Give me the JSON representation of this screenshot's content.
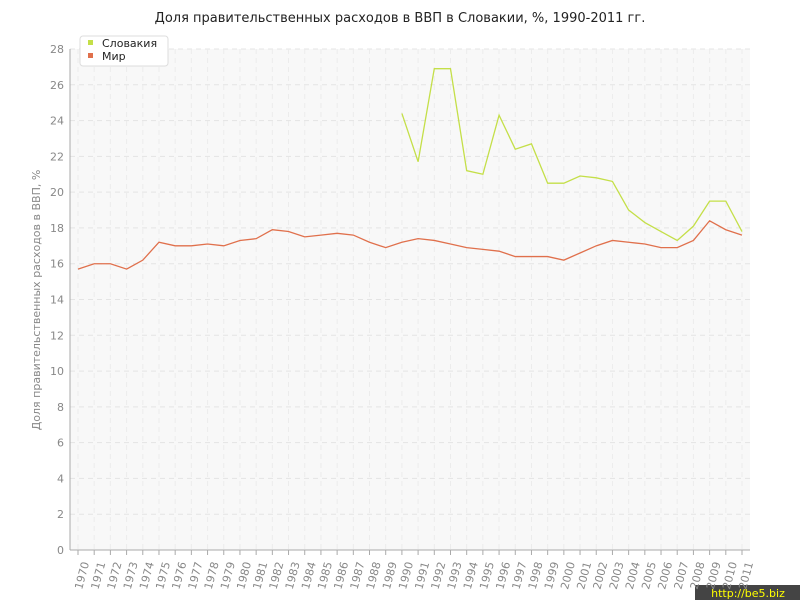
{
  "chart_data": {
    "type": "line",
    "title": "Доля правительственных расходов в ВВП в Словакии, %, 1990-2011 гг.",
    "ylabel": "Доля правительственных расходов в ВВП, %",
    "categories": [
      "1970",
      "1971",
      "1972",
      "1973",
      "1974",
      "1975",
      "1976",
      "1977",
      "1978",
      "1979",
      "1980",
      "1981",
      "1982",
      "1983",
      "1984",
      "1985",
      "1986",
      "1987",
      "1988",
      "1989",
      "1990",
      "1991",
      "1992",
      "1993",
      "1994",
      "1995",
      "1996",
      "1997",
      "1998",
      "1999",
      "2000",
      "2001",
      "2002",
      "2003",
      "2004",
      "2005",
      "2006",
      "2007",
      "2008",
      "2009",
      "2010",
      "2011"
    ],
    "series": [
      {
        "name": "Словакия",
        "color": "#c4df48",
        "values": [
          null,
          null,
          null,
          null,
          null,
          null,
          null,
          null,
          null,
          null,
          null,
          null,
          null,
          null,
          null,
          null,
          null,
          null,
          null,
          null,
          24.4,
          21.7,
          26.9,
          26.9,
          21.2,
          21.0,
          24.3,
          22.4,
          22.7,
          20.5,
          20.5,
          20.9,
          20.8,
          20.6,
          19.0,
          18.3,
          17.8,
          17.3,
          18.1,
          19.5,
          19.5,
          17.8
        ]
      },
      {
        "name": "Мир",
        "color": "#e0704c",
        "values": [
          15.7,
          16.0,
          16.0,
          15.7,
          16.2,
          17.2,
          17.0,
          17.0,
          17.1,
          17.0,
          17.3,
          17.4,
          17.9,
          17.8,
          17.5,
          17.6,
          17.7,
          17.6,
          17.2,
          16.9,
          17.2,
          17.4,
          17.3,
          17.1,
          16.9,
          16.8,
          16.7,
          16.4,
          16.4,
          16.4,
          16.2,
          16.6,
          17.0,
          17.3,
          17.2,
          17.1,
          16.9,
          16.9,
          17.3,
          18.4,
          17.9,
          17.6
        ]
      }
    ],
    "ylim": [
      0,
      28
    ],
    "yticks": [
      0,
      2,
      4,
      6,
      8,
      10,
      12,
      14,
      16,
      18,
      20,
      22,
      24,
      26,
      28
    ],
    "grid": true,
    "legend": "top-left",
    "watermark": "http://be5.biz"
  }
}
